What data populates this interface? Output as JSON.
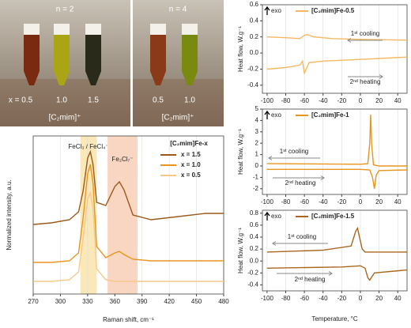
{
  "photo": {
    "panels": [
      {
        "title": "n = 2",
        "labels": [
          "x = 0.5",
          "1.0",
          "1.5"
        ],
        "caption": "[C₂mim]⁺"
      },
      {
        "title": "n = 4",
        "labels": [
          "0.5",
          "1.0"
        ],
        "caption": "[C₂mim]⁺"
      }
    ]
  },
  "chart_data": [
    {
      "type": "line",
      "xlabel": "Raman shift, cm⁻¹",
      "ylabel": "Normalized intensity, a.u.",
      "legend_title": "[C₂mim]Fe-x",
      "grid": true,
      "xlim": [
        270,
        480
      ],
      "xticks": [
        270,
        300,
        330,
        360,
        390,
        420,
        450,
        480
      ],
      "ylim": [
        0,
        10
      ],
      "bands": [
        {
          "range": [
            322,
            340
          ],
          "color": "#fbe8b8",
          "label": "FeCl₃ / FeCl₄⁻"
        },
        {
          "range": [
            352,
            385
          ],
          "color": "#f8d6c2",
          "label": "Fe₂Cl₇⁻"
        }
      ],
      "x": [
        270,
        290,
        310,
        320,
        325,
        330,
        333,
        336,
        340,
        350,
        360,
        365,
        370,
        380,
        400,
        430,
        460,
        480
      ],
      "series": [
        {
          "name": "x = 1.5",
          "color": "#9c5a1a",
          "values": [
            4.4,
            4.5,
            4.7,
            5.2,
            6.5,
            8.6,
            9.0,
            8.2,
            5.8,
            5.6,
            6.8,
            7.1,
            6.6,
            5.0,
            4.7,
            4.9,
            5.1,
            5.1
          ]
        },
        {
          "name": "x = 1.0",
          "color": "#e8951e",
          "values": [
            2.0,
            2.0,
            2.1,
            2.6,
            4.8,
            7.6,
            8.2,
            7.0,
            3.0,
            2.3,
            2.6,
            2.7,
            2.5,
            2.2,
            2.1,
            2.1,
            2.1,
            2.1
          ]
        },
        {
          "name": "x = 0.5",
          "color": "#f5c98a",
          "values": [
            0.8,
            0.8,
            0.9,
            1.4,
            3.5,
            6.0,
            6.4,
            5.4,
            1.6,
            0.9,
            0.8,
            0.8,
            0.8,
            0.8,
            0.8,
            0.8,
            0.8,
            0.8
          ]
        }
      ]
    },
    {
      "type": "line",
      "legend": "[C₂mim]Fe-0.5",
      "color": "#f5b862",
      "ylabel": "Heat flow, W.g⁻¹",
      "exo": "exo",
      "annotations": [
        "1ˢᵗ cooling",
        "2ⁿᵈ heating"
      ],
      "grid": true,
      "xlim": [
        -105,
        50
      ],
      "xticks": [
        -100,
        -80,
        -60,
        -40,
        -20,
        0,
        20,
        40
      ],
      "ylim": [
        -0.5,
        0.6
      ],
      "yticks": [
        -0.4,
        -0.2,
        {
          "value": 0,
          "label": "0.0"
        },
        0.2,
        0.4,
        0.6
      ],
      "series": [
        {
          "x": [
            -100,
            -80,
            -65,
            -60,
            -57,
            -50,
            -30,
            0,
            50
          ],
          "values": [
            0.2,
            0.19,
            0.18,
            0.22,
            0.23,
            0.2,
            0.18,
            0.17,
            0.16
          ]
        },
        {
          "x": [
            -100,
            -80,
            -65,
            -62,
            -60,
            -55,
            -40,
            0,
            50
          ],
          "values": [
            -0.2,
            -0.18,
            -0.15,
            -0.1,
            -0.25,
            -0.12,
            -0.1,
            -0.08,
            -0.05
          ]
        }
      ]
    },
    {
      "type": "line",
      "legend": "[C₂mim]Fe-1",
      "color": "#e8951e",
      "ylabel": "Heat flow, W.g⁻¹",
      "exo": "exo",
      "annotations": [
        "1ˢᵗ cooling",
        "2ⁿᵈ heating"
      ],
      "grid": true,
      "xlim": [
        -105,
        50
      ],
      "xticks": [
        -100,
        -80,
        -60,
        -40,
        -20,
        0,
        20,
        40
      ],
      "ylim": [
        -2.5,
        5
      ],
      "yticks": [
        -2,
        -1,
        0,
        1,
        2,
        3,
        4,
        5
      ],
      "series": [
        {
          "x": [
            -100,
            0,
            8,
            10,
            11,
            12,
            14,
            20,
            50
          ],
          "values": [
            0.2,
            0.15,
            0.2,
            2,
            4.5,
            2,
            0.1,
            0,
            0
          ]
        },
        {
          "x": [
            -100,
            0,
            10,
            13,
            15,
            17,
            20,
            50
          ],
          "values": [
            -0.3,
            -0.3,
            -0.35,
            -1,
            -2,
            -0.8,
            -0.4,
            -0.35
          ]
        }
      ]
    },
    {
      "type": "line",
      "legend": "[C₂mim]Fe-1.5",
      "color": "#a8671c",
      "xlabel": "Temperature, °C",
      "ylabel": "Heat flow, W.g⁻¹",
      "exo": "exo",
      "annotations": [
        "1ˢᵗ cooling",
        "2ⁿᵈ heating"
      ],
      "grid": true,
      "xlim": [
        -105,
        50
      ],
      "xticks": [
        -100,
        -80,
        -60,
        -40,
        -20,
        0,
        20,
        40
      ],
      "ylim": [
        -0.5,
        0.85
      ],
      "yticks": [
        -0.4,
        -0.2,
        {
          "value": 0,
          "label": "0.0"
        },
        0.2,
        0.4,
        0.6,
        0.8
      ],
      "series": [
        {
          "x": [
            -100,
            -40,
            -10,
            -5,
            -3,
            -1,
            2,
            5,
            50
          ],
          "values": [
            0.15,
            0.18,
            0.25,
            0.5,
            0.55,
            0.4,
            0.2,
            0.15,
            0.15
          ]
        },
        {
          "x": [
            -100,
            -20,
            0,
            5,
            8,
            10,
            15,
            50
          ],
          "values": [
            -0.12,
            -0.1,
            -0.08,
            -0.12,
            -0.28,
            -0.32,
            -0.2,
            -0.15
          ]
        }
      ]
    }
  ]
}
